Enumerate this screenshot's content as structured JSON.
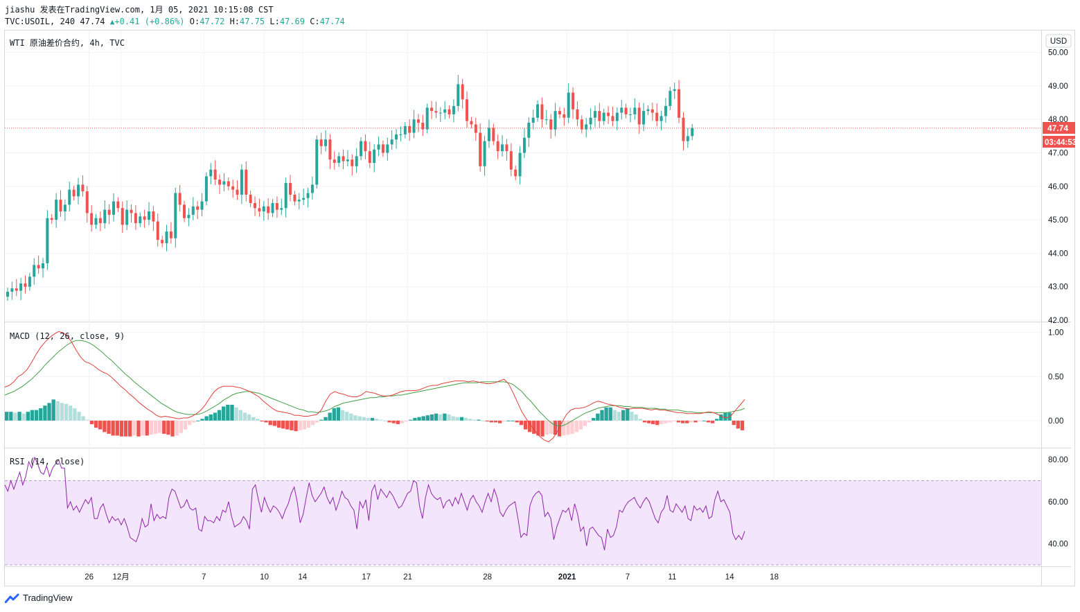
{
  "header": {
    "line1": "jiashu 发表在TradingView.com, 1月 05, 2021 10:15:08 CST",
    "symbol": "TVC:USOIL, 240",
    "last": "47.74",
    "change": "+0.41 (+0.86%)",
    "o_label": "O:",
    "o_value": "47.72",
    "h_label": "H:",
    "h_value": "47.75",
    "l_label": "L:",
    "l_value": "47.69",
    "c_label": "C:",
    "c_value": "47.74"
  },
  "price_pane": {
    "title": "WTI 原油差价合约, 4h, TVC",
    "currency": "USD",
    "last_price_label": "47.74",
    "countdown": "03:44:53",
    "yticks": [
      "50.00",
      "49.00",
      "48.00",
      "47.00",
      "46.00",
      "45.00",
      "44.00",
      "43.00",
      "42.00"
    ]
  },
  "macd_pane": {
    "title": "MACD (12, 26, close, 9)",
    "yticks": [
      "1.00",
      "0.50",
      "0.00"
    ]
  },
  "rsi_pane": {
    "title": "RSI (14, close)",
    "yticks": [
      "80.00",
      "60.00",
      "40.00"
    ]
  },
  "time_axis": [
    "26",
    "12月",
    "7",
    "10",
    "14",
    "17",
    "21",
    "28",
    "2021",
    "7",
    "11",
    "14",
    "18"
  ],
  "branding": {
    "name": "TradingView"
  },
  "colors": {
    "up": "#26a69a",
    "down": "#ef5350",
    "macd_line": "#e0403a",
    "signal_line": "#43a047",
    "rsi_line": "#8e24aa",
    "rsi_band": "#f3e5fb",
    "grid": "#f0f3fa",
    "hist_up_strong": "#26a69a",
    "hist_up_weak": "#b2dfdb",
    "hist_down_strong": "#ef5350",
    "hist_down_weak": "#ffcdd2"
  },
  "chart_data": {
    "type": "candlestick",
    "symbol": "WTI 原油差价合约",
    "timeframe": "4h",
    "ylim": [
      42,
      50.2
    ],
    "time_labels": [
      {
        "label": "26",
        "x": 26
      },
      {
        "label": "12月",
        "x": 36
      },
      {
        "label": "7",
        "x": 62
      },
      {
        "label": "10",
        "x": 81
      },
      {
        "label": "14",
        "x": 93
      },
      {
        "label": "17",
        "x": 113
      },
      {
        "label": "21",
        "x": 126
      },
      {
        "label": "28",
        "x": 151
      },
      {
        "label": "2021",
        "x": 176
      },
      {
        "label": "7",
        "x": 195
      },
      {
        "label": "11",
        "x": 209
      },
      {
        "label": "14",
        "x": 227
      },
      {
        "label": "18",
        "x": 241
      }
    ],
    "close": [
      42.85,
      42.95,
      42.88,
      43.1,
      43.0,
      43.3,
      43.65,
      43.55,
      43.7,
      45.05,
      45.0,
      45.6,
      45.25,
      45.45,
      45.9,
      45.7,
      46.05,
      45.85,
      45.2,
      44.85,
      45.05,
      44.9,
      45.3,
      45.15,
      45.55,
      45.35,
      44.85,
      45.3,
      45.2,
      44.9,
      45.1,
      45.0,
      45.25,
      44.95,
      44.4,
      44.3,
      44.65,
      44.45,
      45.8,
      45.45,
      45.05,
      45.15,
      45.4,
      45.3,
      45.55,
      46.3,
      46.5,
      46.2,
      46.05,
      46.15,
      46.0,
      45.9,
      45.75,
      46.5,
      45.75,
      45.5,
      45.35,
      45.25,
      45.4,
      45.2,
      45.5,
      45.3,
      45.35,
      46.1,
      45.75,
      45.55,
      45.6,
      45.65,
      45.8,
      46.05,
      47.4,
      47.2,
      47.4,
      46.8,
      46.7,
      46.9,
      46.75,
      46.8,
      46.6,
      46.9,
      47.35,
      47.05,
      46.7,
      47.1,
      47.25,
      47.0,
      47.25,
      47.4,
      47.55,
      47.55,
      47.8,
      47.6,
      48.0,
      47.9,
      47.7,
      48.35,
      48.25,
      48.2,
      48.2,
      48.3,
      48.15,
      48.4,
      49.05,
      48.6,
      47.95,
      47.85,
      47.6,
      46.6,
      47.35,
      47.75,
      47.35,
      47.05,
      47.25,
      47.05,
      46.5,
      46.3,
      47.0,
      47.45,
      47.9,
      48.05,
      48.45,
      48.0,
      48.0,
      47.7,
      48.25,
      48.15,
      48.05,
      48.8,
      48.3,
      48.0,
      47.7,
      47.85,
      48.05,
      48.25,
      47.95,
      48.2,
      48.1,
      47.95,
      48.2,
      48.35,
      48.15,
      48.15,
      48.35,
      47.85,
      48.25,
      48.3,
      48.2,
      47.95,
      48.1,
      48.4,
      48.85,
      48.9,
      48.05,
      47.35,
      47.5,
      47.74
    ],
    "macd_hist": [
      0.1,
      0.1,
      0.09,
      0.1,
      0.08,
      0.1,
      0.12,
      0.12,
      0.14,
      0.17,
      0.2,
      0.24,
      0.22,
      0.2,
      0.19,
      0.17,
      0.14,
      0.1,
      0.05,
      0.01,
      -0.04,
      -0.08,
      -0.1,
      -0.13,
      -0.15,
      -0.17,
      -0.17,
      -0.18,
      -0.18,
      -0.18,
      -0.17,
      -0.18,
      -0.17,
      -0.17,
      -0.16,
      -0.15,
      -0.14,
      -0.15,
      -0.16,
      -0.18,
      -0.17,
      -0.14,
      -0.1,
      -0.05,
      -0.02,
      0.0,
      0.02,
      0.05,
      0.07,
      0.09,
      0.12,
      0.16,
      0.18,
      0.18,
      0.15,
      0.12,
      0.09,
      0.07,
      0.04,
      0.02,
      -0.01,
      -0.02,
      -0.05,
      -0.06,
      -0.08,
      -0.09,
      -0.1,
      -0.11,
      -0.12,
      -0.11,
      -0.1,
      -0.08,
      -0.05,
      -0.02,
      0.01,
      0.04,
      0.09,
      0.14,
      0.15,
      0.12,
      0.1,
      0.08,
      0.06,
      0.05,
      0.04,
      0.03,
      0.03,
      0.02,
      0.01,
      0.0,
      -0.02,
      -0.03,
      -0.04,
      -0.03,
      -0.01,
      0.01,
      0.03,
      0.04,
      0.05,
      0.06,
      0.07,
      0.08,
      0.07,
      0.08,
      0.07,
      0.05,
      0.04,
      0.04,
      0.03,
      0.02,
      0.01,
      0.01,
      0.0,
      -0.01,
      -0.02,
      -0.02,
      -0.03,
      -0.01,
      0.0,
      0.0,
      -0.02,
      -0.05,
      -0.1,
      -0.13,
      -0.15,
      -0.17,
      -0.18,
      -0.16,
      -0.15,
      -0.16,
      -0.18,
      -0.17,
      -0.16,
      -0.15,
      -0.13,
      -0.1,
      -0.06,
      -0.02,
      0.03,
      0.08,
      0.12,
      0.15,
      0.15,
      0.12,
      0.1,
      0.12,
      0.14,
      0.1,
      0.07,
      0.02,
      -0.02,
      -0.03,
      -0.04,
      -0.05,
      -0.04,
      -0.03,
      -0.02,
      -0.01,
      -0.02,
      -0.03,
      -0.03,
      -0.02,
      -0.02,
      -0.01,
      0.0,
      -0.02,
      -0.03,
      0.02,
      0.07,
      0.09,
      0.09
    ],
    "macd_hist_ext": [
      -0.05,
      -0.09,
      -0.11
    ],
    "macd": [
      0.38,
      0.4,
      0.44,
      0.5,
      0.53,
      0.58,
      0.66,
      0.75,
      0.83,
      0.89,
      0.94,
      0.98,
      1.01,
      1.0,
      0.96,
      0.89,
      0.8,
      0.72,
      0.67,
      0.65,
      0.62,
      0.58,
      0.55,
      0.53,
      0.49,
      0.44,
      0.39,
      0.35,
      0.3,
      0.26,
      0.21,
      0.17,
      0.13,
      0.1,
      0.06,
      0.04,
      0.05,
      0.04,
      0.03,
      0.02,
      0.03,
      0.03,
      0.05,
      0.08,
      0.12,
      0.18,
      0.26,
      0.33,
      0.37,
      0.39,
      0.39,
      0.39,
      0.38,
      0.37,
      0.35,
      0.33,
      0.3,
      0.27,
      0.22,
      0.18,
      0.14,
      0.11,
      0.1,
      0.09,
      0.08,
      0.06,
      0.06,
      0.05,
      0.05,
      0.06,
      0.07,
      0.12,
      0.22,
      0.3,
      0.33,
      0.31,
      0.3,
      0.28,
      0.27,
      0.27,
      0.29,
      0.33,
      0.32,
      0.31,
      0.29,
      0.28,
      0.28,
      0.29,
      0.31,
      0.33,
      0.34,
      0.34,
      0.34,
      0.35,
      0.37,
      0.39,
      0.4,
      0.4,
      0.42,
      0.43,
      0.44,
      0.45,
      0.45,
      0.45,
      0.44,
      0.45,
      0.44,
      0.43,
      0.42,
      0.42,
      0.43,
      0.45,
      0.47,
      0.42,
      0.32,
      0.21,
      0.1,
      0.02,
      -0.05,
      -0.12,
      -0.18,
      -0.22,
      -0.24,
      -0.2,
      -0.12,
      -0.02,
      0.07,
      0.12,
      0.14,
      0.14,
      0.15,
      0.17,
      0.2,
      0.22,
      0.21,
      0.19,
      0.18,
      0.17,
      0.15,
      0.14,
      0.13,
      0.14,
      0.14,
      0.14,
      0.13,
      0.12,
      0.13,
      0.12,
      0.12,
      0.11,
      0.1,
      0.09,
      0.09,
      0.08,
      0.08,
      0.08,
      0.08,
      0.09,
      0.1,
      0.09,
      0.07,
      0.04,
      0.03,
      0.06,
      0.12,
      0.18,
      0.24
    ],
    "macd_signal": [
      0.29,
      0.31,
      0.33,
      0.36,
      0.39,
      0.43,
      0.47,
      0.52,
      0.57,
      0.63,
      0.68,
      0.73,
      0.78,
      0.82,
      0.86,
      0.89,
      0.91,
      0.91,
      0.9,
      0.88,
      0.85,
      0.81,
      0.77,
      0.72,
      0.68,
      0.63,
      0.58,
      0.53,
      0.49,
      0.44,
      0.4,
      0.36,
      0.32,
      0.28,
      0.24,
      0.2,
      0.17,
      0.14,
      0.11,
      0.09,
      0.08,
      0.07,
      0.07,
      0.07,
      0.08,
      0.1,
      0.13,
      0.16,
      0.19,
      0.23,
      0.26,
      0.29,
      0.31,
      0.32,
      0.33,
      0.33,
      0.32,
      0.31,
      0.29,
      0.27,
      0.25,
      0.23,
      0.21,
      0.19,
      0.17,
      0.15,
      0.13,
      0.12,
      0.1,
      0.1,
      0.09,
      0.1,
      0.11,
      0.13,
      0.16,
      0.18,
      0.2,
      0.21,
      0.22,
      0.23,
      0.24,
      0.25,
      0.26,
      0.26,
      0.27,
      0.27,
      0.28,
      0.28,
      0.29,
      0.29,
      0.3,
      0.31,
      0.32,
      0.33,
      0.34,
      0.35,
      0.36,
      0.37,
      0.38,
      0.39,
      0.4,
      0.41,
      0.42,
      0.43,
      0.43,
      0.43,
      0.43,
      0.44,
      0.44,
      0.44,
      0.44,
      0.44,
      0.44,
      0.43,
      0.41,
      0.37,
      0.33,
      0.27,
      0.22,
      0.16,
      0.1,
      0.05,
      0.0,
      -0.04,
      -0.06,
      -0.06,
      -0.04,
      -0.01,
      0.02,
      0.05,
      0.08,
      0.1,
      0.12,
      0.14,
      0.15,
      0.16,
      0.17,
      0.17,
      0.17,
      0.16,
      0.16,
      0.15,
      0.15,
      0.15,
      0.14,
      0.14,
      0.14,
      0.13,
      0.13,
      0.12,
      0.12,
      0.12,
      0.11,
      0.1,
      0.1,
      0.09,
      0.09,
      0.09,
      0.09,
      0.09,
      0.09,
      0.09,
      0.09,
      0.1,
      0.11,
      0.12,
      0.14
    ],
    "rsi": [
      68,
      65,
      70,
      66,
      70,
      74,
      68,
      72,
      79,
      76,
      81,
      78,
      74,
      73,
      77,
      72,
      76,
      78,
      80,
      76,
      76,
      57,
      60,
      56,
      58,
      55,
      58,
      61,
      59,
      62,
      52,
      52,
      57,
      59,
      54,
      50,
      53,
      51,
      52,
      49,
      52,
      48,
      43,
      42,
      41,
      45,
      52,
      48,
      49,
      59,
      51,
      54,
      52,
      53,
      52,
      62,
      66,
      65,
      61,
      57,
      58,
      61,
      57,
      56,
      57,
      47,
      46,
      53,
      51,
      51,
      50,
      53,
      51,
      56,
      55,
      60,
      53,
      48,
      49,
      50,
      53,
      51,
      47,
      66,
      68,
      61,
      55,
      62,
      58,
      55,
      58,
      57,
      55,
      52,
      56,
      59,
      64,
      67,
      60,
      50,
      54,
      62,
      69,
      63,
      60,
      62,
      64,
      67,
      62,
      59,
      62,
      56,
      60,
      65,
      62,
      61,
      58,
      56,
      47,
      60,
      57,
      61,
      51,
      65,
      68,
      61,
      66,
      64,
      62,
      65,
      63,
      60,
      57,
      58,
      61,
      64,
      65,
      70,
      69,
      58,
      52,
      62,
      68,
      64,
      62,
      61,
      62,
      57,
      60,
      61,
      58,
      62,
      59,
      64,
      60,
      56,
      61,
      63,
      60,
      58,
      55,
      60,
      64,
      60,
      66,
      62,
      55,
      53,
      56,
      58,
      59,
      60,
      52,
      43,
      45,
      44,
      58,
      62,
      64,
      65,
      63,
      53,
      55,
      52,
      42,
      48,
      52,
      56,
      55,
      57,
      51,
      59,
      54,
      46,
      48,
      39,
      47,
      48,
      46,
      44,
      43,
      37,
      47,
      43,
      44,
      48,
      56,
      55,
      58,
      60,
      61,
      62,
      59,
      57,
      60,
      62,
      60,
      56,
      52,
      50,
      55,
      57,
      63,
      56,
      55,
      59,
      57,
      55,
      58,
      52,
      51,
      58,
      56,
      57,
      55,
      58,
      52,
      53,
      61,
      65,
      60,
      61,
      58,
      55,
      45,
      42,
      44,
      42,
      46
    ],
    "macd_ylim": [
      -0.3,
      1.1
    ],
    "rsi_ylim": [
      30,
      85
    ],
    "rsi_band": [
      30,
      70
    ]
  }
}
